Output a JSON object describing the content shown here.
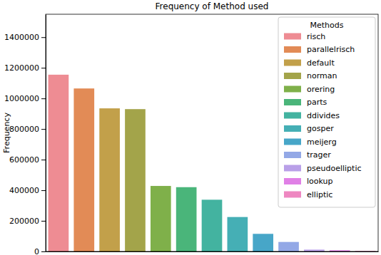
{
  "chart_data": {
    "type": "bar",
    "title": "Frequency of Method used",
    "y_label": "Frequency",
    "legend_title": "Methods",
    "categories": [
      "risch",
      "parallelrisch",
      "default",
      "norman",
      "orering",
      "parts",
      "ddivides",
      "gosper",
      "meijerg",
      "trager",
      "pseudoelliptic",
      "lookup",
      "elliptic"
    ],
    "values": [
      1155000,
      1065000,
      935000,
      930000,
      428000,
      420000,
      338000,
      225000,
      115000,
      62000,
      12000,
      8000,
      3000
    ],
    "colors": [
      "#ee8c93",
      "#e28b56",
      "#c2a04a",
      "#a3a44a",
      "#7fb04a",
      "#4ab57a",
      "#43b3a0",
      "#45afb5",
      "#47a6c8",
      "#93a8e6",
      "#b9a0e8",
      "#e080e6",
      "#ee87c1"
    ],
    "ylim": [
      0,
      1550000
    ],
    "yticks": [
      0,
      200000,
      400000,
      600000,
      800000,
      1000000,
      1200000,
      1400000
    ],
    "legend": "upper right",
    "tick_labels": "y",
    "grid": false
  }
}
